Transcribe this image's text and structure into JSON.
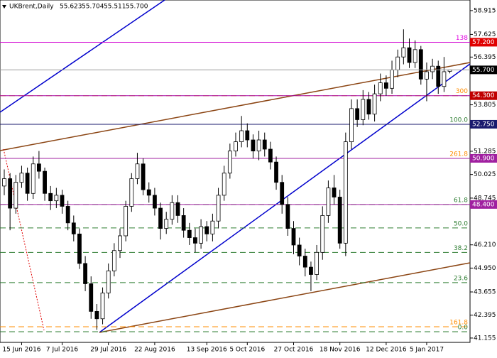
{
  "chart_data": {
    "type": "candlestick",
    "title": "UKBrent,Daily",
    "categories": [
      null,
      null,
      null,
      "15 Jun 2016",
      null,
      null,
      null,
      null,
      null,
      null,
      "7 Jul 2016",
      null,
      null,
      null,
      null,
      null,
      null,
      null,
      "29 Jul 2016",
      null,
      null,
      null,
      null,
      null,
      null,
      null,
      "22 Aug 2016",
      null,
      null,
      null,
      null,
      null,
      null,
      null,
      null,
      "13 Sep 2016",
      null,
      null,
      null,
      null,
      null,
      null,
      "5 Oct 2016",
      null,
      null,
      null,
      null,
      null,
      null,
      null,
      "27 Oct 2016",
      null,
      null,
      null,
      null,
      null,
      null,
      null,
      "18 Nov 2016",
      null,
      null,
      null,
      null,
      null,
      null,
      null,
      "12 Dec 2016",
      null,
      null,
      null,
      null,
      null,
      null,
      "5 Jan 2017",
      null,
      null,
      null,
      null
    ],
    "open": [
      49.4,
      49.8,
      48.2,
      49.6,
      50.1,
      49.0,
      50.6,
      50.2,
      49.0,
      48.6,
      48.9,
      48.3,
      47.4,
      46.8,
      45.2,
      44.1,
      42.6,
      42.2,
      43.6,
      44.8,
      45.9,
      46.7,
      48.3,
      49.8,
      50.6,
      49.2,
      48.9,
      48.2,
      47.1,
      47.6,
      48.5,
      47.8,
      47.0,
      46.6,
      46.3,
      47.2,
      46.8,
      47.5,
      48.9,
      50.1,
      51.3,
      51.8,
      52.4,
      51.9,
      51.3,
      51.9,
      51.4,
      50.7,
      49.6,
      48.4,
      47.1,
      46.2,
      45.6,
      45.0,
      44.6,
      45.8,
      47.8,
      49.3,
      48.8,
      46.3,
      51.8,
      53.6,
      53.0,
      54.1,
      53.3,
      54.4,
      55.0,
      54.7,
      55.7,
      56.4,
      56.9,
      56.1,
      56.8,
      55.2,
      55.6,
      55.9,
      54.8,
      55.623
    ],
    "high": [
      50.3,
      50.1,
      50.0,
      50.5,
      50.4,
      51.0,
      51.3,
      50.4,
      49.4,
      49.3,
      49.2,
      48.6,
      47.8,
      47.1,
      45.6,
      44.5,
      43.0,
      43.9,
      45.2,
      46.3,
      47.1,
      48.6,
      50.1,
      51.2,
      50.9,
      49.6,
      49.3,
      48.5,
      48.0,
      48.9,
      48.9,
      48.2,
      47.4,
      47.1,
      47.6,
      47.5,
      47.9,
      49.3,
      50.5,
      51.7,
      52.3,
      53.2,
      52.8,
      52.2,
      52.4,
      52.3,
      51.8,
      51.0,
      50.0,
      48.8,
      47.5,
      46.6,
      46.0,
      45.3,
      46.2,
      48.3,
      49.7,
      50.0,
      49.2,
      52.3,
      54.1,
      54.1,
      54.6,
      54.5,
      54.9,
      55.5,
      55.4,
      56.2,
      56.8,
      57.9,
      57.4,
      57.3,
      57.0,
      56.1,
      56.3,
      56.2,
      56.4,
      55.704
    ],
    "low": [
      48.9,
      47.0,
      47.9,
      49.3,
      48.6,
      48.7,
      49.8,
      48.6,
      48.1,
      48.2,
      47.9,
      47.0,
      46.4,
      44.9,
      43.7,
      42.2,
      41.6,
      41.9,
      43.3,
      44.5,
      45.5,
      46.4,
      48.0,
      49.5,
      48.9,
      48.5,
      47.8,
      46.5,
      46.8,
      47.3,
      47.4,
      46.6,
      46.2,
      45.8,
      46.0,
      46.4,
      46.4,
      47.1,
      48.6,
      49.8,
      51.0,
      51.5,
      51.5,
      50.9,
      50.8,
      51.0,
      50.3,
      49.2,
      47.9,
      46.7,
      45.7,
      45.1,
      44.5,
      43.7,
      44.3,
      45.4,
      47.4,
      48.4,
      46.0,
      45.6,
      51.4,
      52.6,
      52.7,
      53.0,
      52.9,
      54.0,
      54.3,
      54.4,
      55.3,
      56.0,
      55.8,
      55.8,
      54.9,
      54.0,
      55.2,
      54.4,
      54.5,
      55.511
    ],
    "close": [
      49.8,
      48.2,
      49.6,
      50.1,
      49.0,
      50.6,
      50.2,
      49.0,
      48.6,
      48.9,
      48.3,
      47.4,
      46.8,
      45.2,
      44.1,
      42.6,
      42.2,
      43.6,
      44.8,
      45.9,
      46.7,
      48.3,
      49.8,
      50.6,
      49.2,
      48.9,
      48.2,
      47.1,
      47.6,
      48.5,
      47.8,
      47.0,
      46.6,
      46.3,
      47.2,
      46.8,
      47.5,
      48.9,
      50.1,
      51.3,
      51.8,
      52.4,
      51.9,
      51.3,
      51.9,
      51.4,
      50.7,
      49.6,
      48.4,
      47.1,
      46.2,
      45.6,
      45.0,
      44.6,
      45.8,
      47.8,
      49.3,
      48.8,
      46.3,
      51.8,
      53.6,
      53.0,
      54.1,
      53.3,
      54.4,
      55.0,
      54.7,
      55.7,
      56.4,
      56.9,
      56.1,
      56.8,
      55.2,
      55.6,
      55.9,
      54.8,
      55.6,
      55.7
    ],
    "ylim": [
      40.92,
      59.49
    ],
    "yticks": [
      58.915,
      57.625,
      56.395,
      53.805,
      51.285,
      50.025,
      48.745,
      {
        "value": 46.21,
        "label": "46.210"
      },
      {
        "value": 44.95,
        "label": "44.950"
      },
      43.655,
      42.395,
      41.155
    ],
    "fib_levels": [
      {
        "value": 57.2,
        "label": "138",
        "color": "#e000e0"
      },
      {
        "value": 54.3,
        "label": "300",
        "color": "#ff8c00"
      },
      {
        "value": 52.75,
        "label": "100.0",
        "color": "#2e7d32"
      },
      {
        "value": 50.9,
        "label": "261.8",
        "color": "#ff8c00"
      },
      {
        "value": 48.4,
        "label": "61.8",
        "color": "#2e7d32"
      },
      {
        "value": 47.13,
        "label": "50.0",
        "color": "#2e7d32"
      },
      {
        "value": 45.8,
        "label": "38.2",
        "color": "#2e7d32"
      },
      {
        "value": 44.16,
        "label": "23.6",
        "color": "#2e7d32"
      },
      {
        "value": 41.77,
        "label": "161.8",
        "color": "#ff8c00"
      },
      {
        "value": 41.5,
        "label": "0.0",
        "color": "#2e7d32"
      }
    ],
    "price_levels": [
      {
        "value": 57.2,
        "label": "57.200",
        "color": "#d000d0",
        "box": "#e00000"
      },
      {
        "value": 54.3,
        "label": "54.300",
        "color": "#a000a0",
        "box": "#c00000"
      },
      {
        "value": 52.75,
        "label": "52.750",
        "color": "#1a1a6e",
        "box": "#1a1a6e"
      },
      {
        "value": 50.9,
        "label": "50.900",
        "color": "#a020a0",
        "box": "#a020a0"
      },
      {
        "value": 48.4,
        "label": "48.400",
        "color": "#a020a0",
        "box": "#a020a0"
      }
    ],
    "last_price": {
      "value": 55.7,
      "label": "55.700",
      "color": "#999999",
      "box": "#000000"
    }
  }
}
